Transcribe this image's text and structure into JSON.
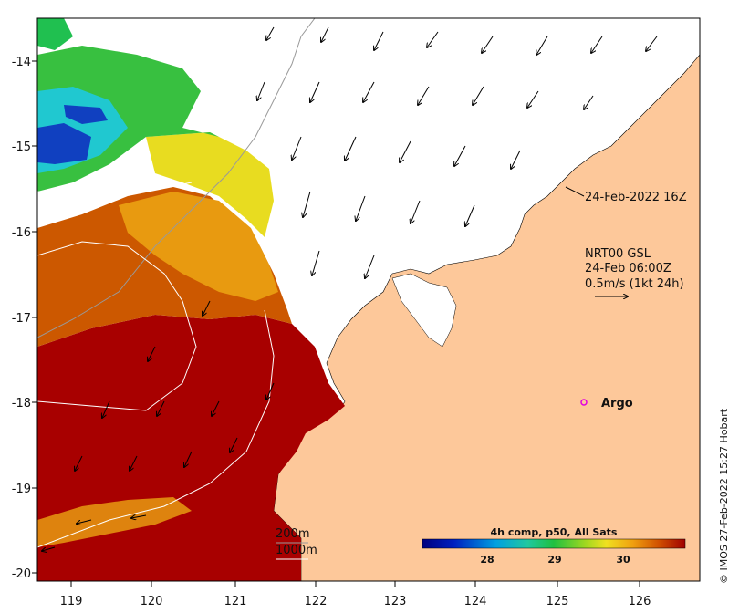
{
  "map": {
    "lon_ticks": [
      "119",
      "120",
      "121",
      "122",
      "123",
      "124",
      "125",
      "126"
    ],
    "lat_ticks": [
      "-14",
      "-15",
      "-16",
      "-17",
      "-18",
      "-19",
      "-20"
    ],
    "timestamp": "24-Feb-2022 16Z",
    "current_source": "NRT00 GSL",
    "current_time": "24-Feb 06:00Z",
    "current_scale": "0.5m/s (1kt 24h)",
    "argo_label": "Argo",
    "contour_200": "200m",
    "contour_1000": "1000m",
    "colorbar_title": "4h comp, p50, All Sats",
    "colorbar_ticks": [
      "28",
      "29",
      "30"
    ],
    "credit": "© IMOS 27-Feb-2022 15:27 Hobart",
    "colors": {
      "land": "#fdc89a",
      "hot": "#a80000",
      "warm": "#cc5800",
      "mid": "#e89a10",
      "yellow": "#e8dc20",
      "green": "#38c040",
      "cyan": "#20c8d0",
      "blue": "#1040c0"
    }
  }
}
